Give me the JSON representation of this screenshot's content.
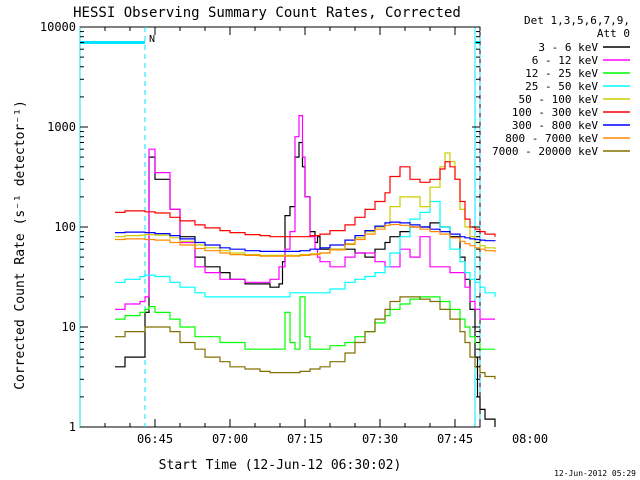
{
  "chart_data": {
    "type": "line",
    "title": "HESSI Observing Summary Count Rates, Corrected",
    "xlabel": "Start Time (12-Jun-12 06:30:02)",
    "ylabel": "Corrected Count Rate (s⁻¹ detector⁻¹)",
    "y_scale": "log",
    "ylim": [
      1,
      10000
    ],
    "xlim_minutes_of_day": [
      390,
      470
    ],
    "x_tick_labels": [
      "06:45",
      "07:00",
      "07:15",
      "07:30",
      "07:45",
      "08:00"
    ],
    "x_ticks_minutes_of_day": [
      405,
      420,
      435,
      450,
      465,
      480
    ],
    "y_tick_labels": [
      "1",
      "10",
      "100",
      "1000",
      "10000"
    ],
    "y_ticks": [
      1,
      10,
      100,
      1000,
      10000
    ],
    "legend_position": "top-right, outside plot",
    "legend_header": [
      "Det 1,3,5,6,7,9,",
      "Att 0"
    ],
    "timestamp": "12-Jun-2012 05:29",
    "annotations": {
      "night_marker_label": "N",
      "cyan_bar_y": 7000,
      "cyan_bar_ranges_minutes": [
        [
          390,
          403
        ],
        [
          469,
          478
        ]
      ],
      "dashed_lines_minutes": [
        403,
        478
      ],
      "solid_lines_minutes": [
        390,
        469
      ]
    },
    "series": [
      {
        "name": "3 - 6 keV",
        "color": "#000000",
        "x": [
          397,
          398,
          399,
          402,
          403,
          403.8,
          405,
          408,
          410,
          413,
          415,
          418,
          420,
          423,
          426,
          428,
          429.8,
          430.5,
          431,
          432,
          433,
          433.8,
          434.5,
          435,
          436,
          437,
          437.5,
          438,
          440,
          443,
          445,
          447,
          449,
          451,
          452,
          454,
          456,
          458,
          460,
          462,
          464,
          466,
          467,
          468,
          469,
          469.5,
          470,
          471,
          473
        ],
        "y": [
          4,
          4,
          5,
          5,
          14,
          500,
          300,
          150,
          80,
          50,
          40,
          35,
          30,
          27,
          27,
          25,
          27,
          45,
          130,
          160,
          500,
          700,
          400,
          200,
          90,
          70,
          80,
          60,
          60,
          60,
          55,
          50,
          60,
          70,
          80,
          90,
          100,
          100,
          110,
          100,
          80,
          50,
          30,
          15,
          5,
          2,
          1.5,
          1.2,
          1
        ]
      },
      {
        "name": "6 - 12 keV",
        "color": "#ff00ff",
        "x": [
          397,
          398,
          399,
          402,
          403,
          403.8,
          405,
          408,
          410,
          413,
          415,
          418,
          420,
          423,
          426,
          428,
          429.8,
          430.5,
          431,
          432,
          433,
          433.8,
          434.5,
          435,
          436,
          437,
          437.5,
          438,
          440,
          443,
          445,
          447,
          449,
          451,
          452,
          454,
          456,
          458,
          460,
          462,
          464,
          466,
          467,
          468,
          469,
          470,
          471,
          473
        ],
        "y": [
          15,
          15,
          17,
          18,
          20,
          600,
          350,
          150,
          70,
          40,
          35,
          30,
          30,
          28,
          28,
          30,
          40,
          40,
          60,
          90,
          800,
          1300,
          500,
          200,
          80,
          60,
          50,
          45,
          40,
          50,
          55,
          55,
          45,
          40,
          40,
          60,
          50,
          80,
          40,
          40,
          35,
          35,
          25,
          18,
          15,
          12,
          12,
          12
        ]
      },
      {
        "name": "12 - 25 keV",
        "color": "#00ff00",
        "x": [
          397,
          398,
          399,
          402,
          403,
          403.8,
          405,
          408,
          410,
          413,
          415,
          418,
          420,
          423,
          426,
          428,
          429.8,
          430.5,
          431,
          432,
          433,
          434,
          435,
          436,
          438,
          440,
          443,
          445,
          447,
          449,
          451,
          452,
          454,
          456,
          458,
          460,
          462,
          464,
          466,
          467,
          468,
          469,
          470,
          471,
          473
        ],
        "y": [
          12,
          12,
          13,
          14,
          15,
          16,
          14,
          12,
          10,
          8,
          8,
          7,
          7,
          6,
          6,
          6,
          6,
          6,
          14,
          7,
          6,
          20,
          8,
          6,
          6,
          6.5,
          7,
          8,
          9,
          11,
          13,
          15,
          17,
          19,
          20,
          20,
          18,
          15,
          12,
          10,
          8,
          7,
          6,
          6,
          6
        ]
      },
      {
        "name": "25 - 50 keV",
        "color": "#00ffff",
        "x": [
          397,
          398,
          399,
          402,
          403,
          405,
          408,
          410,
          413,
          415,
          418,
          420,
          423,
          426,
          428,
          430,
          432,
          434,
          436,
          438,
          440,
          443,
          445,
          447,
          449,
          451,
          452,
          454,
          456,
          458,
          460,
          462,
          464,
          466,
          467,
          468,
          469,
          470,
          471,
          473
        ],
        "y": [
          28,
          28,
          30,
          32,
          33,
          32,
          28,
          25,
          22,
          20,
          20,
          20,
          20,
          20,
          20,
          20,
          22,
          22,
          22,
          22,
          24,
          28,
          30,
          32,
          35,
          40,
          55,
          80,
          120,
          140,
          180,
          100,
          60,
          45,
          35,
          30,
          28,
          25,
          22,
          20
        ]
      },
      {
        "name": "50 - 100 keV",
        "color": "#cccc00",
        "x": [
          397,
          398,
          399,
          402,
          403,
          405,
          408,
          410,
          413,
          415,
          418,
          420,
          423,
          426,
          428,
          430,
          432,
          434,
          436,
          438,
          440,
          443,
          445,
          447,
          449,
          451,
          452,
          454,
          456,
          458,
          460,
          462,
          463,
          464,
          465,
          466,
          467,
          468,
          469,
          470,
          471,
          473
        ],
        "y": [
          80,
          80,
          82,
          83,
          84,
          83,
          78,
          72,
          66,
          62,
          58,
          55,
          53,
          52,
          52,
          52,
          52,
          53,
          54,
          55,
          60,
          68,
          78,
          90,
          100,
          110,
          160,
          200,
          200,
          160,
          250,
          400,
          550,
          450,
          300,
          150,
          100,
          80,
          70,
          65,
          62,
          60
        ]
      },
      {
        "name": "100 - 300 keV",
        "color": "#ff0000",
        "x": [
          397,
          398,
          399,
          402,
          403,
          405,
          408,
          410,
          413,
          415,
          418,
          420,
          423,
          426,
          428,
          430,
          432,
          434,
          436,
          438,
          440,
          443,
          445,
          447,
          449,
          451,
          452,
          454,
          456,
          458,
          460,
          462,
          463,
          464,
          465,
          466,
          467,
          468,
          469,
          470,
          471,
          473
        ],
        "y": [
          140,
          140,
          145,
          145,
          142,
          138,
          125,
          115,
          105,
          98,
          92,
          88,
          84,
          82,
          80,
          80,
          80,
          80,
          82,
          85,
          92,
          105,
          125,
          150,
          180,
          220,
          320,
          400,
          300,
          280,
          300,
          380,
          450,
          400,
          300,
          180,
          120,
          100,
          95,
          90,
          85,
          80
        ]
      },
      {
        "name": "300 - 800 keV",
        "color": "#0000ff",
        "x": [
          397,
          398,
          399,
          402,
          403,
          405,
          408,
          410,
          413,
          415,
          418,
          420,
          423,
          426,
          428,
          430,
          432,
          434,
          436,
          438,
          440,
          443,
          445,
          447,
          449,
          451,
          452,
          454,
          456,
          458,
          460,
          462,
          464,
          466,
          467,
          468,
          469,
          470,
          471,
          473
        ],
        "y": [
          88,
          88,
          89,
          89,
          88,
          86,
          82,
          76,
          70,
          66,
          62,
          60,
          58,
          57,
          57,
          57,
          57,
          58,
          60,
          62,
          66,
          74,
          82,
          92,
          102,
          110,
          112,
          110,
          105,
          100,
          95,
          90,
          85,
          80,
          78,
          76,
          75,
          74,
          73,
          72
        ]
      },
      {
        "name": "800 - 7000 keV",
        "color": "#ff8800",
        "x": [
          397,
          398,
          399,
          402,
          403,
          405,
          408,
          410,
          413,
          415,
          418,
          420,
          423,
          426,
          428,
          430,
          432,
          434,
          436,
          438,
          440,
          443,
          445,
          447,
          449,
          451,
          452,
          454,
          456,
          458,
          460,
          462,
          464,
          466,
          467,
          468,
          469,
          470,
          471,
          473
        ],
        "y": [
          75,
          75,
          76,
          76,
          75,
          74,
          70,
          66,
          61,
          58,
          55,
          53,
          52,
          51,
          51,
          51,
          51,
          52,
          53,
          55,
          59,
          67,
          75,
          85,
          95,
          104,
          106,
          104,
          100,
          95,
          90,
          85,
          78,
          72,
          68,
          65,
          62,
          60,
          58,
          56
        ]
      },
      {
        "name": "7000 - 20000 keV",
        "color": "#807000",
        "x": [
          397,
          398,
          399,
          402,
          403,
          405,
          408,
          410,
          413,
          415,
          418,
          420,
          423,
          426,
          428,
          430,
          432,
          434,
          436,
          438,
          440,
          443,
          445,
          447,
          449,
          451,
          452,
          454,
          456,
          458,
          460,
          462,
          464,
          466,
          467,
          468,
          469,
          470,
          471,
          473
        ],
        "y": [
          8,
          8,
          9,
          9,
          10,
          10,
          9,
          7,
          6,
          5,
          4.5,
          4,
          3.8,
          3.6,
          3.5,
          3.5,
          3.5,
          3.6,
          3.8,
          4,
          4.5,
          5.5,
          7,
          9,
          12,
          15,
          18,
          20,
          20,
          19,
          18,
          15,
          12,
          9,
          7,
          5,
          4,
          3.5,
          3.2,
          3
        ]
      }
    ]
  }
}
